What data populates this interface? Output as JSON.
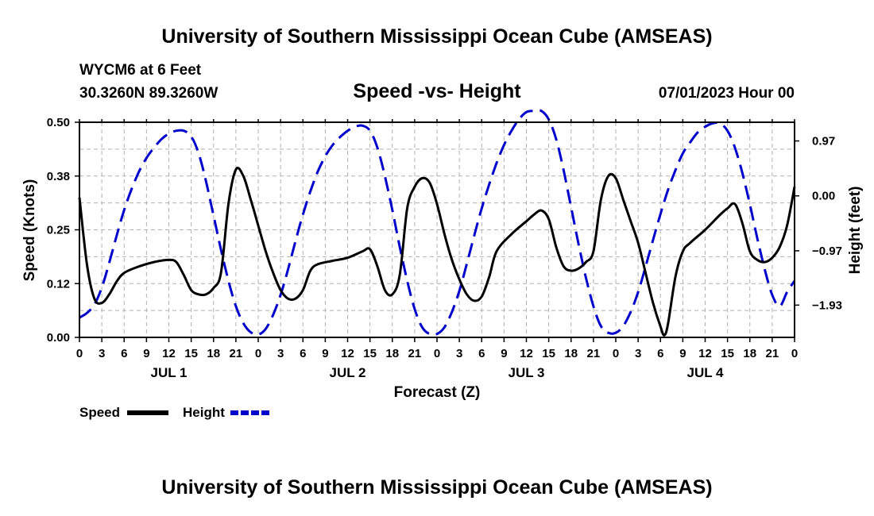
{
  "header": {
    "title_top": "University of Southern Mississippi Ocean Cube (AMSEAS)",
    "station": "WYCM6 at 6 Feet",
    "coords": "30.3260N  89.3260W",
    "datetime": "07/01/2023 Hour 00",
    "title_bottom": "University of Southern Mississippi Ocean Cube (AMSEAS)"
  },
  "chart_data": {
    "type": "line",
    "title": "Speed -vs- Height",
    "xlabel": "Forecast (Z)",
    "ylabel_left": "Speed (Knots)",
    "ylabel_right": "Height (feet)",
    "x_range_hours": [
      0,
      96
    ],
    "x_tick_step_hours": 3,
    "x_tick_labels": [
      "0",
      "3",
      "6",
      "9",
      "12",
      "15",
      "18",
      "21",
      "0",
      "3",
      "6",
      "9",
      "12",
      "15",
      "18",
      "21",
      "0",
      "3",
      "6",
      "9",
      "12",
      "15",
      "18",
      "21",
      "0",
      "3",
      "6",
      "9",
      "12",
      "15",
      "18",
      "21",
      "0"
    ],
    "day_labels": [
      {
        "label": "JUL 1",
        "hour": 12
      },
      {
        "label": "JUL 2",
        "hour": 36
      },
      {
        "label": "JUL 3",
        "hour": 60
      },
      {
        "label": "JUL 4",
        "hour": 84
      }
    ],
    "left_axis": {
      "ylim": [
        0,
        0.5
      ],
      "ticks": [
        0.0,
        0.125,
        0.25,
        0.375,
        0.5
      ],
      "tick_labels": [
        "0.00",
        "0.12",
        "0.25",
        "0.38",
        "0.50"
      ]
    },
    "right_axis": {
      "ylim": [
        -2.5,
        1.3
      ],
      "ticks": [
        0.97,
        0.0,
        -0.97,
        -1.93
      ],
      "tick_labels": [
        "0.97",
        "0.00",
        "−0.97",
        "−1.93"
      ]
    },
    "grid": true,
    "legend": {
      "position": "bottom-left",
      "entries": [
        "Speed",
        "Height"
      ]
    },
    "series": [
      {
        "name": "Speed",
        "axis": "left",
        "color": "#000000",
        "style": "solid",
        "points": [
          [
            0,
            0.325
          ],
          [
            1,
            0.17
          ],
          [
            2,
            0.09
          ],
          [
            3,
            0.08
          ],
          [
            4,
            0.1
          ],
          [
            5,
            0.13
          ],
          [
            6,
            0.15
          ],
          [
            8,
            0.165
          ],
          [
            10,
            0.175
          ],
          [
            12,
            0.18
          ],
          [
            13,
            0.175
          ],
          [
            14,
            0.145
          ],
          [
            15,
            0.11
          ],
          [
            16,
            0.1
          ],
          [
            17,
            0.1
          ],
          [
            18,
            0.115
          ],
          [
            19,
            0.15
          ],
          [
            20,
            0.31
          ],
          [
            21,
            0.39
          ],
          [
            22,
            0.375
          ],
          [
            23,
            0.32
          ],
          [
            24,
            0.26
          ],
          [
            25,
            0.2
          ],
          [
            26,
            0.15
          ],
          [
            27,
            0.11
          ],
          [
            28,
            0.09
          ],
          [
            29,
            0.09
          ],
          [
            30,
            0.11
          ],
          [
            31,
            0.155
          ],
          [
            32,
            0.17
          ],
          [
            34,
            0.178
          ],
          [
            36,
            0.185
          ],
          [
            38,
            0.2
          ],
          [
            39,
            0.205
          ],
          [
            40,
            0.165
          ],
          [
            41,
            0.11
          ],
          [
            42,
            0.1
          ],
          [
            43,
            0.145
          ],
          [
            44,
            0.3
          ],
          [
            45,
            0.35
          ],
          [
            46,
            0.37
          ],
          [
            47,
            0.36
          ],
          [
            48,
            0.31
          ],
          [
            49,
            0.24
          ],
          [
            50,
            0.18
          ],
          [
            51,
            0.135
          ],
          [
            52,
            0.1
          ],
          [
            53,
            0.085
          ],
          [
            54,
            0.095
          ],
          [
            55,
            0.14
          ],
          [
            56,
            0.2
          ],
          [
            58,
            0.24
          ],
          [
            60,
            0.27
          ],
          [
            61,
            0.285
          ],
          [
            62,
            0.295
          ],
          [
            63,
            0.275
          ],
          [
            64,
            0.21
          ],
          [
            65,
            0.165
          ],
          [
            66,
            0.155
          ],
          [
            67,
            0.16
          ],
          [
            68,
            0.175
          ],
          [
            69,
            0.2
          ],
          [
            70,
            0.32
          ],
          [
            71,
            0.375
          ],
          [
            72,
            0.37
          ],
          [
            73,
            0.32
          ],
          [
            74,
            0.27
          ],
          [
            75,
            0.22
          ],
          [
            76,
            0.15
          ],
          [
            77,
            0.08
          ],
          [
            78,
            0.025
          ],
          [
            78.5,
            0.005
          ],
          [
            79,
            0.03
          ],
          [
            80,
            0.14
          ],
          [
            81,
            0.2
          ],
          [
            82,
            0.22
          ],
          [
            84,
            0.25
          ],
          [
            86,
            0.285
          ],
          [
            87,
            0.3
          ],
          [
            88,
            0.31
          ],
          [
            89,
            0.265
          ],
          [
            90,
            0.2
          ],
          [
            91,
            0.18
          ],
          [
            92,
            0.175
          ],
          [
            93,
            0.185
          ],
          [
            94,
            0.21
          ],
          [
            95,
            0.26
          ],
          [
            96,
            0.35
          ]
        ]
      },
      {
        "name": "Height",
        "axis": "right",
        "color": "#0000cc",
        "style": "dashed",
        "points": [
          [
            0,
            -2.15
          ],
          [
            1,
            -2.07
          ],
          [
            2,
            -1.92
          ],
          [
            3,
            -1.62
          ],
          [
            4,
            -1.18
          ],
          [
            5,
            -0.7
          ],
          [
            6,
            -0.25
          ],
          [
            7,
            0.12
          ],
          [
            8,
            0.43
          ],
          [
            9,
            0.67
          ],
          [
            10,
            0.85
          ],
          [
            11,
            1.0
          ],
          [
            12,
            1.1
          ],
          [
            13,
            1.15
          ],
          [
            14,
            1.15
          ],
          [
            15,
            1.05
          ],
          [
            16,
            0.75
          ],
          [
            17,
            0.25
          ],
          [
            18,
            -0.35
          ],
          [
            19,
            -0.95
          ],
          [
            20,
            -1.5
          ],
          [
            21,
            -1.95
          ],
          [
            22,
            -2.25
          ],
          [
            23,
            -2.41
          ],
          [
            24,
            -2.45
          ],
          [
            25,
            -2.35
          ],
          [
            26,
            -2.1
          ],
          [
            27,
            -1.75
          ],
          [
            28,
            -1.3
          ],
          [
            29,
            -0.8
          ],
          [
            30,
            -0.33
          ],
          [
            31,
            0.08
          ],
          [
            32,
            0.43
          ],
          [
            33,
            0.7
          ],
          [
            34,
            0.9
          ],
          [
            35,
            1.04
          ],
          [
            36,
            1.15
          ],
          [
            37,
            1.22
          ],
          [
            38,
            1.24
          ],
          [
            39,
            1.15
          ],
          [
            40,
            0.85
          ],
          [
            41,
            0.35
          ],
          [
            42,
            -0.25
          ],
          [
            43,
            -0.9
          ],
          [
            44,
            -1.5
          ],
          [
            45,
            -2.0
          ],
          [
            46,
            -2.32
          ],
          [
            47,
            -2.44
          ],
          [
            48,
            -2.44
          ],
          [
            49,
            -2.32
          ],
          [
            50,
            -2.05
          ],
          [
            51,
            -1.68
          ],
          [
            52,
            -1.2
          ],
          [
            53,
            -0.7
          ],
          [
            54,
            -0.22
          ],
          [
            55,
            0.2
          ],
          [
            56,
            0.58
          ],
          [
            57,
            0.9
          ],
          [
            58,
            1.15
          ],
          [
            59,
            1.35
          ],
          [
            60,
            1.48
          ],
          [
            61,
            1.5
          ],
          [
            62,
            1.5
          ],
          [
            63,
            1.35
          ],
          [
            64,
            1.0
          ],
          [
            65,
            0.45
          ],
          [
            66,
            -0.2
          ],
          [
            67,
            -0.85
          ],
          [
            68,
            -1.45
          ],
          [
            69,
            -1.95
          ],
          [
            70,
            -2.3
          ],
          [
            71,
            -2.42
          ],
          [
            72,
            -2.42
          ],
          [
            73,
            -2.3
          ],
          [
            74,
            -2.05
          ],
          [
            75,
            -1.7
          ],
          [
            76,
            -1.25
          ],
          [
            77,
            -0.78
          ],
          [
            78,
            -0.32
          ],
          [
            79,
            0.1
          ],
          [
            80,
            0.45
          ],
          [
            81,
            0.75
          ],
          [
            82,
            0.95
          ],
          [
            83,
            1.12
          ],
          [
            84,
            1.22
          ],
          [
            85,
            1.28
          ],
          [
            86,
            1.28
          ],
          [
            87,
            1.15
          ],
          [
            88,
            0.85
          ],
          [
            89,
            0.4
          ],
          [
            90,
            -0.15
          ],
          [
            91,
            -0.75
          ],
          [
            92,
            -1.3
          ],
          [
            93,
            -1.75
          ],
          [
            94,
            -1.95
          ],
          [
            95,
            -1.7
          ],
          [
            96,
            -1.5
          ]
        ]
      }
    ]
  }
}
